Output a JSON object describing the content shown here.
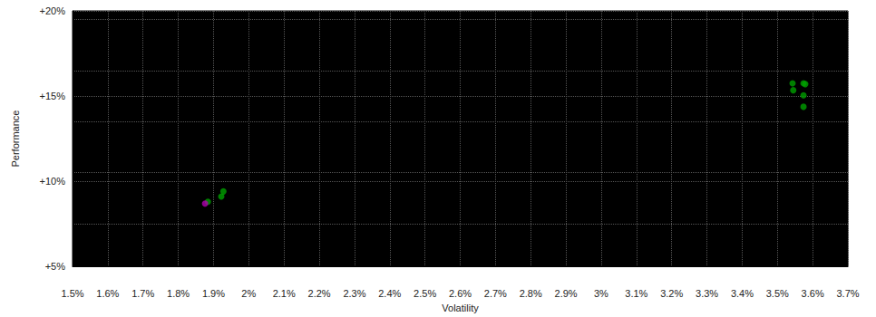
{
  "chart_data": {
    "type": "scatter",
    "x_label": "Volatility",
    "y_label": "Performance",
    "series": [
      {
        "color": "#00a000",
        "values": [
          [
            3.543,
            15.75
          ],
          [
            3.545,
            15.34
          ],
          [
            3.574,
            15.75
          ],
          [
            3.579,
            15.7
          ],
          [
            3.574,
            15.04
          ],
          [
            3.574,
            14.37
          ],
          [
            1.928,
            9.4
          ],
          [
            1.922,
            9.1
          ],
          [
            1.884,
            8.79
          ]
        ]
      },
      {
        "color": "#b000b0",
        "values": [
          [
            1.876,
            8.69
          ]
        ]
      }
    ],
    "xlim": [
      1.5,
      3.7
    ],
    "xticks": [
      {
        "value": 1.5,
        "label": "1.5%"
      },
      {
        "value": 1.6,
        "label": "1.6%"
      },
      {
        "value": 1.7,
        "label": "1.7%"
      },
      {
        "value": 1.8,
        "label": "1.8%"
      },
      {
        "value": 1.9,
        "label": "1.9%"
      },
      {
        "value": 2,
        "label": "2%"
      },
      {
        "value": 2.1,
        "label": "2.1%"
      },
      {
        "value": 2.2,
        "label": "2.2%"
      },
      {
        "value": 2.3,
        "label": "2.3%"
      },
      {
        "value": 2.4,
        "label": "2.4%"
      },
      {
        "value": 2.5,
        "label": "2.5%"
      },
      {
        "value": 2.6,
        "label": "2.6%"
      },
      {
        "value": 2.7,
        "label": "2.7%"
      },
      {
        "value": 2.8,
        "label": "2.8%"
      },
      {
        "value": 2.9,
        "label": "2.9%"
      },
      {
        "value": 3,
        "label": "3%"
      },
      {
        "value": 3.1,
        "label": "3.1%"
      },
      {
        "value": 3.2,
        "label": "3.2%"
      },
      {
        "value": 3.3,
        "label": "3.3%"
      },
      {
        "value": 3.4,
        "label": "3.4%"
      },
      {
        "value": 3.5,
        "label": "3.5%"
      },
      {
        "value": 3.6,
        "label": "3.6%"
      },
      {
        "value": 3.7,
        "label": "3.7%"
      }
    ],
    "ylim": [
      5,
      20
    ],
    "yticks": [
      {
        "value": 5,
        "label": "+5%"
      },
      {
        "value": 10,
        "label": "+10%"
      },
      {
        "value": 15,
        "label": "+15%"
      },
      {
        "value": 20,
        "label": "+20%"
      }
    ],
    "grid": true
  }
}
